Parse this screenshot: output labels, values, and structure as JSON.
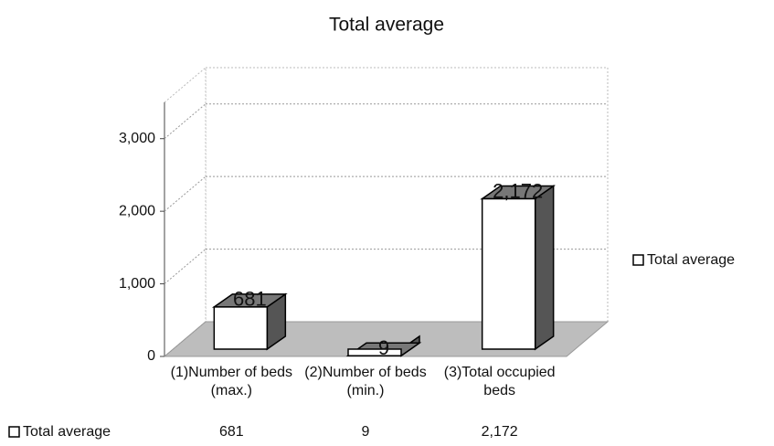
{
  "chart_data": {
    "type": "bar3d",
    "title": "Total average",
    "categories": [
      "(1)Number of beds (max.)",
      "(2)Number of beds (min.)",
      "(3)Total occupied beds"
    ],
    "series": [
      {
        "name": "Total average",
        "color": "#ffffff",
        "values": [
          681,
          9,
          2172
        ],
        "value_labels": [
          "681",
          "9",
          "2,172"
        ]
      }
    ],
    "ylim": [
      0,
      3500
    ],
    "yticks": [
      0,
      {
        "value": 1000,
        "label": "1,000"
      },
      {
        "value": 2000,
        "label": "2,000"
      },
      {
        "value": 3000,
        "label": "3,000"
      }
    ],
    "grid": true,
    "legend": "right",
    "data_table": true
  }
}
